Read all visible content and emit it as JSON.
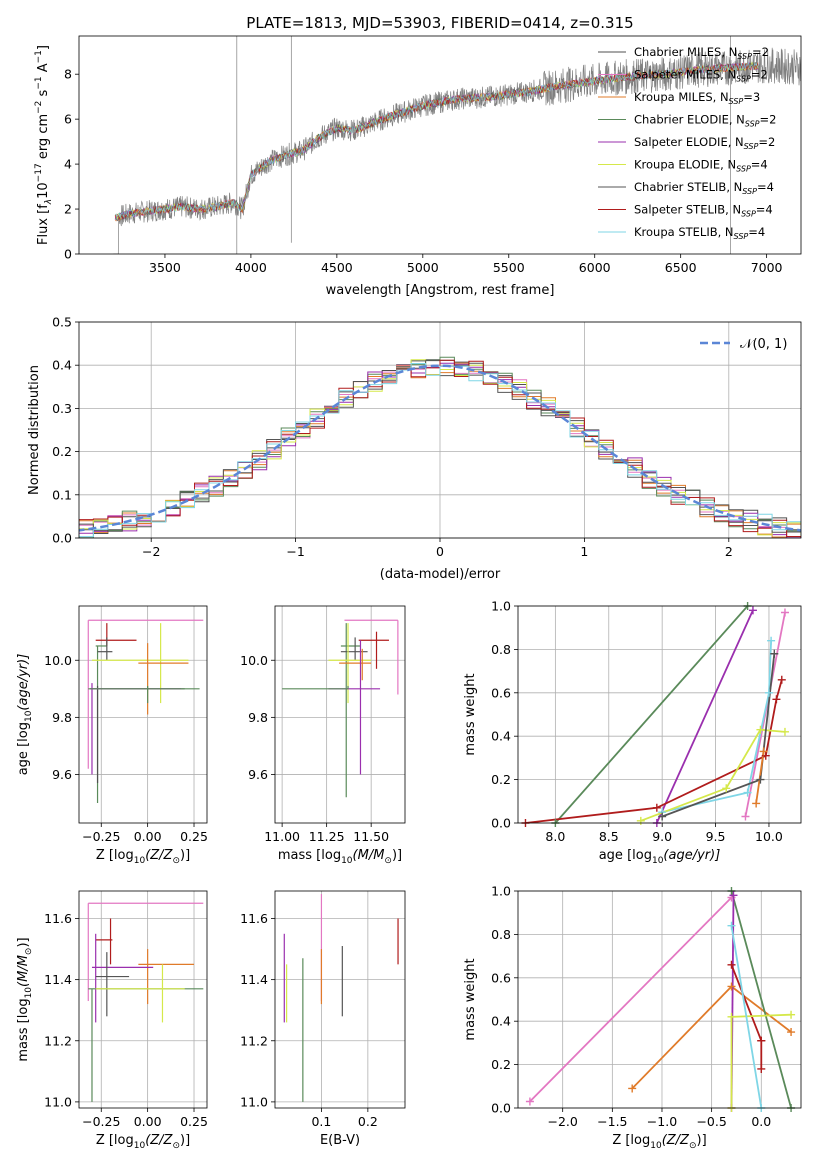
{
  "title": "PLATE=1813, MJD=53903, FIBERID=0414, z=0.315",
  "models": [
    {
      "label": "Chabrier MILES, N",
      "nssp": "=2",
      "color": "#4f4f4f"
    },
    {
      "label": "Salpeter MILES, N",
      "nssp": "=2",
      "color": "#e377c2"
    },
    {
      "label": "Kroupa MILES, N",
      "nssp": "=3",
      "color": "#e07b2a"
    },
    {
      "label": "Chabrier ELODIE, N",
      "nssp": "=2",
      "color": "#5a8a5a"
    },
    {
      "label": "Salpeter ELODIE, N",
      "nssp": "=2",
      "color": "#9a2fae"
    },
    {
      "label": "Kroupa ELODIE, N",
      "nssp": "=4",
      "color": "#d5e84a"
    },
    {
      "label": "Chabrier STELIB, N",
      "nssp": "=4",
      "color": "#555555"
    },
    {
      "label": "Salpeter STELIB, N",
      "nssp": "=4",
      "color": "#b01c1c"
    },
    {
      "label": "Kroupa STELIB, N",
      "nssp": "=4",
      "color": "#7fd6e6"
    }
  ],
  "extra_colors": {
    "blue": "#5b86d6",
    "green": "#2e7d32",
    "gray": "#808080"
  },
  "panels": {
    "spectrum": {
      "xlabel": "wavelength [Angstrom, rest frame]",
      "ylabel": "Flux [f",
      "ylabel_lambda": "λ",
      "ylabel_mid": "10",
      "ylabel_exp": "−17",
      "ylabel_units": " erg cm",
      "ylabel_cm_exp": "−2",
      "ylabel_s": " s",
      "ylabel_s_exp": "−1",
      "ylabel_end": " A",
      "ylabel_a_exp": "−1",
      "ylabel_close": "]",
      "subscript": "SSP",
      "xticks": [
        "3500",
        "4000",
        "4500",
        "5000",
        "5500",
        "6000",
        "6500",
        "7000"
      ],
      "yticks": [
        "0",
        "2",
        "4",
        "6",
        "8"
      ]
    },
    "residuals": {
      "xlabel": "(data-model)/error",
      "ylabel": "Normed distribution",
      "legend_label": "𝒩(0, 1)",
      "xticks": [
        "−2",
        "−1",
        "0",
        "1",
        "2"
      ],
      "yticks": [
        "0.0",
        "0.1",
        "0.2",
        "0.3",
        "0.4",
        "0.5"
      ]
    },
    "age_z": {
      "xlabel": "Z [log",
      "xlabel_sub": "10",
      "xlabel_rest": "(Z/Z",
      "xlabel_sun": "⊙",
      "xlabel_close": ")]",
      "ylabel": "age  [log",
      "ylabel_sub": "10",
      "ylabel_rest": "(age/yr)]",
      "xticks": [
        "−0.25",
        "0.00",
        "0.25"
      ],
      "yticks": [
        "9.6",
        "9.8",
        "10.0"
      ]
    },
    "age_mass": {
      "xlabel": "mass [log",
      "xlabel_sub": "10",
      "xlabel_rest": "(M/M",
      "xlabel_sun": "⊙",
      "xlabel_close": ")]",
      "xticks": [
        "11.00",
        "11.25",
        "11.50"
      ],
      "yticks": [
        "9.6",
        "9.8",
        "10.0"
      ]
    },
    "mw_age": {
      "xlabel": "age  [log",
      "xlabel_sub": "10",
      "xlabel_rest": "(age/yr)]",
      "ylabel": "mass weight",
      "xticks": [
        "8.0",
        "8.5",
        "9.0",
        "9.5",
        "10.0"
      ],
      "yticks": [
        "0.0",
        "0.2",
        "0.4",
        "0.6",
        "0.8",
        "1.0"
      ]
    },
    "mass_z": {
      "xlabel": "Z [log",
      "xlabel_sub": "10",
      "xlabel_rest": "(Z/Z",
      "xlabel_sun": "⊙",
      "xlabel_close": ")]",
      "ylabel": "mass [log",
      "ylabel_sub": "10",
      "ylabel_rest": "(M/M",
      "ylabel_sun": "⊙",
      "ylabel_close": ")]",
      "xticks": [
        "−0.25",
        "0.00",
        "0.25"
      ],
      "yticks": [
        "11.0",
        "11.2",
        "11.4",
        "11.6"
      ]
    },
    "mass_ebv": {
      "xlabel": "E(B-V)",
      "xticks": [
        "0.1",
        "0.2"
      ],
      "yticks": [
        "11.0",
        "11.2",
        "11.4",
        "11.6"
      ]
    },
    "mw_z": {
      "xlabel": "Z [log",
      "xlabel_sub": "10",
      "xlabel_rest": "(Z/Z",
      "xlabel_sun": "⊙",
      "xlabel_close": ")]",
      "ylabel": "mass weight",
      "xticks": [
        "−2.0",
        "−1.5",
        "−1.0",
        "−0.5",
        "0.0"
      ],
      "yticks": [
        "0.0",
        "0.2",
        "0.4",
        "0.6",
        "0.8",
        "1.0"
      ]
    }
  },
  "chart_data": [
    {
      "type": "line",
      "title": "PLATE=1813, MJD=53903, FIBERID=0414, z=0.315",
      "xlabel": "wavelength [Angstrom, rest frame]",
      "ylabel": "Flux [fλ 10^−17 erg cm^−2 s^−1 A^−1]",
      "xlim": [
        3000,
        7200
      ],
      "ylim": [
        0,
        9.7
      ],
      "grid": false,
      "legend": "top-right",
      "series_names": [
        "Chabrier MILES, NSSP=2",
        "Salpeter MILES, NSSP=2",
        "Kroupa MILES, NSSP=3",
        "Chabrier ELODIE, NSSP=2",
        "Salpeter ELODIE, NSSP=2",
        "Kroupa ELODIE, NSSP=4",
        "Chabrier STELIB, NSSP=4",
        "Salpeter STELIB, NSSP=4",
        "Kroupa STELIB, NSSP=4"
      ],
      "continuum_x": [
        3200,
        3300,
        3500,
        3600,
        3700,
        3800,
        3900,
        3950,
        4000,
        4100,
        4200,
        4300,
        4400,
        4500,
        4600,
        4800,
        5000,
        5200,
        5400,
        5600,
        5800,
        6000,
        6200,
        6400,
        6600,
        6800,
        7000,
        7200
      ],
      "continuum_y": [
        1.6,
        1.8,
        2.0,
        2.1,
        2.0,
        2.1,
        2.3,
        2.0,
        3.5,
        4.1,
        4.4,
        4.6,
        5.2,
        5.6,
        5.5,
        6.1,
        6.6,
        6.9,
        7.0,
        7.2,
        7.5,
        7.7,
        7.9,
        8.0,
        8.2,
        8.3,
        8.4,
        8.3
      ],
      "noise_amplitude": 0.5
    },
    {
      "type": "bar",
      "xlabel": "(data-model)/error",
      "ylabel": "Normed distribution",
      "xlim": [
        -2.5,
        2.5
      ],
      "ylim": [
        0,
        0.5
      ],
      "grid": true,
      "legend": "top-right",
      "bin_width": 0.1,
      "reference_curve": "N(0,1)",
      "histogram_scatter": 0.025
    },
    {
      "type": "scatter",
      "xlabel": "Z [log10(Z/Z⊙)]",
      "ylabel": "age [log10(age/yr)]",
      "xlim": [
        -0.37,
        0.32
      ],
      "ylim": [
        9.43,
        10.19
      ],
      "grid": true,
      "points": [
        {
          "c": 1,
          "x": -0.32,
          "y": 10.14,
          "xl": -0.32,
          "xh": 0.3,
          "yl": 9.62,
          "yh": 10.14
        },
        {
          "c": 9,
          "x": -0.28,
          "y": 10.08,
          "xl": -0.32,
          "xh": 0.3,
          "yl": 9.47,
          "yh": 10.08
        },
        {
          "c": 7,
          "x": -0.22,
          "y": 10.07,
          "xl": -0.28,
          "xh": -0.06,
          "yl": 10.05,
          "yh": 10.13
        },
        {
          "c": 3,
          "x": -0.27,
          "y": 10.05,
          "xl": -0.28,
          "xh": -0.22,
          "yl": 9.5,
          "yh": 10.05
        },
        {
          "c": 6,
          "x": -0.22,
          "y": 10.03,
          "xl": -0.27,
          "xh": -0.19,
          "yl": 10.0,
          "yh": 10.08
        },
        {
          "c": 5,
          "x": 0.07,
          "y": 10.0,
          "xl": -0.3,
          "xh": 0.22,
          "yl": 9.85,
          "yh": 10.13
        },
        {
          "c": 2,
          "x": 0.0,
          "y": 9.99,
          "xl": -0.05,
          "xh": 0.22,
          "yl": 9.81,
          "yh": 10.06
        },
        {
          "c": 0,
          "x": -0.27,
          "y": 9.9,
          "xl": -0.31,
          "xh": 0.2,
          "yl": 9.57,
          "yh": 9.91
        },
        {
          "c": 4,
          "x": -0.3,
          "y": 9.9,
          "xl": -0.31,
          "xh": 0.18,
          "yl": 9.6,
          "yh": 9.92
        },
        {
          "c": 3,
          "x": 0.0,
          "y": 9.9,
          "xl": -0.32,
          "xh": 0.28,
          "yl": 9.85,
          "yh": 9.91
        }
      ]
    },
    {
      "type": "scatter",
      "xlabel": "mass [log10(M/M⊙)]",
      "xlim": [
        10.96,
        11.69
      ],
      "ylim": [
        9.43,
        10.19
      ],
      "grid": true,
      "points": [
        {
          "c": 1,
          "x": 11.65,
          "y": 10.14,
          "xl": 11.35,
          "xh": 11.65,
          "yl": 9.88,
          "yh": 10.14
        },
        {
          "c": 9,
          "x": 11.48,
          "y": 10.08,
          "xl": 11.08,
          "xh": 11.5,
          "yl": 9.47,
          "yh": 10.08
        },
        {
          "c": 7,
          "x": 11.53,
          "y": 10.07,
          "xl": 11.43,
          "xh": 11.6,
          "yl": 9.97,
          "yh": 10.1
        },
        {
          "c": 3,
          "x": 11.36,
          "y": 10.05,
          "xl": 11.33,
          "xh": 11.44,
          "yl": 9.52,
          "yh": 10.13
        },
        {
          "c": 6,
          "x": 11.41,
          "y": 10.03,
          "xl": 11.33,
          "xh": 11.48,
          "yl": 10.0,
          "yh": 10.08
        },
        {
          "c": 5,
          "x": 11.37,
          "y": 10.0,
          "xl": 11.26,
          "xh": 11.5,
          "yl": 9.85,
          "yh": 10.13
        },
        {
          "c": 2,
          "x": 11.45,
          "y": 9.99,
          "xl": 11.32,
          "xh": 11.5,
          "yl": 9.93,
          "yh": 10.04
        },
        {
          "c": 4,
          "x": 11.44,
          "y": 9.9,
          "xl": 11.26,
          "xh": 11.55,
          "yl": 9.6,
          "yh": 10.07
        },
        {
          "c": 3,
          "x": 11.37,
          "y": 9.9,
          "xl": 11.0,
          "xh": 11.37,
          "yl": 9.9,
          "yh": 9.91
        }
      ]
    },
    {
      "type": "line",
      "xlabel": "age [log10(age/yr)]",
      "ylabel": "mass weight",
      "xlim": [
        7.65,
        10.3
      ],
      "ylim": [
        0,
        1
      ],
      "grid": true,
      "series": [
        {
          "c": 3,
          "x": [
            8.0,
            9.8
          ],
          "y": [
            0.0,
            1.0
          ]
        },
        {
          "c": 4,
          "x": [
            8.95,
            9.85
          ],
          "y": [
            0.0,
            0.98
          ]
        },
        {
          "c": 9,
          "x": [
            8.7,
            8.75,
            10.02
          ],
          "y": [
            0.0,
            0.02,
            0.99
          ]
        },
        {
          "c": 9,
          "x": [
            7.72,
            8.7,
            10.0
          ],
          "y": [
            0.0,
            0.03,
            0.85
          ]
        },
        {
          "c": 1,
          "x": [
            9.78,
            10.15
          ],
          "y": [
            0.03,
            0.97
          ]
        },
        {
          "c": 7,
          "x": [
            7.72,
            8.95,
            9.97,
            10.07,
            10.12
          ],
          "y": [
            0.0,
            0.07,
            0.31,
            0.57,
            0.66
          ]
        },
        {
          "c": 8,
          "x": [
            9.0,
            9.8,
            10.0,
            10.02
          ],
          "y": [
            0.05,
            0.14,
            0.6,
            0.84
          ]
        },
        {
          "c": 5,
          "x": [
            8.8,
            9.6,
            9.92,
            10.15
          ],
          "y": [
            0.01,
            0.16,
            0.43,
            0.42
          ]
        },
        {
          "c": 6,
          "x": [
            9.0,
            9.92,
            10.05
          ],
          "y": [
            0.03,
            0.2,
            0.78
          ]
        },
        {
          "c": 2,
          "x": [
            9.88,
            9.95
          ],
          "y": [
            0.09,
            0.33
          ]
        }
      ]
    },
    {
      "type": "scatter",
      "xlabel": "Z [log10(Z/Z⊙)]",
      "ylabel": "mass [log10(M/M⊙)]",
      "xlim": [
        -0.37,
        0.32
      ],
      "ylim": [
        10.98,
        11.69
      ],
      "grid": true,
      "points": [
        {
          "c": 1,
          "x": -0.32,
          "y": 11.65,
          "xl": -0.32,
          "xh": 0.3,
          "yl": 11.33,
          "yh": 11.65
        },
        {
          "c": 7,
          "x": -0.2,
          "y": 11.53,
          "xl": -0.28,
          "xh": -0.19,
          "yl": 11.45,
          "yh": 11.6
        },
        {
          "c": 9,
          "x": -0.28,
          "y": 11.49,
          "xl": -0.32,
          "xh": 0.3,
          "yl": 11.08,
          "yh": 11.49
        },
        {
          "c": 2,
          "x": 0.0,
          "y": 11.45,
          "xl": -0.05,
          "xh": 0.25,
          "yl": 11.32,
          "yh": 11.5
        },
        {
          "c": 4,
          "x": -0.28,
          "y": 11.44,
          "xl": -0.3,
          "xh": 0.03,
          "yl": 11.26,
          "yh": 11.55
        },
        {
          "c": 6,
          "x": -0.22,
          "y": 11.41,
          "xl": -0.28,
          "xh": -0.1,
          "yl": 11.28,
          "yh": 11.49
        },
        {
          "c": 3,
          "x": -0.3,
          "y": 11.37,
          "xl": -0.32,
          "xh": 0.3,
          "yl": 11.0,
          "yh": 11.37
        },
        {
          "c": 5,
          "x": 0.08,
          "y": 11.37,
          "xl": -0.28,
          "xh": 0.2,
          "yl": 11.26,
          "yh": 11.45
        }
      ]
    },
    {
      "type": "scatter",
      "xlabel": "E(B-V)",
      "xlim": [
        0.0,
        0.28
      ],
      "ylim": [
        10.98,
        11.69
      ],
      "grid": true,
      "points": [
        {
          "c": 1,
          "x": 0.1,
          "y": 11.65,
          "yl": 11.33,
          "yh": 11.68
        },
        {
          "c": 7,
          "x": 0.265,
          "y": 11.53,
          "yl": 11.45,
          "yh": 11.6
        },
        {
          "c": 9,
          "x": 0.095,
          "y": 11.49,
          "yl": 11.08,
          "yh": 11.52
        },
        {
          "c": 2,
          "x": 0.1,
          "y": 11.45,
          "yl": 11.32,
          "yh": 11.5
        },
        {
          "c": 4,
          "x": 0.02,
          "y": 11.44,
          "yl": 11.26,
          "yh": 11.55
        },
        {
          "c": 6,
          "x": 0.145,
          "y": 11.41,
          "yl": 11.28,
          "yh": 11.51
        },
        {
          "c": 3,
          "x": 0.06,
          "y": 11.37,
          "yl": 11.0,
          "yh": 11.47
        },
        {
          "c": 5,
          "x": 0.025,
          "y": 11.37,
          "yl": 11.26,
          "yh": 11.45
        }
      ]
    },
    {
      "type": "line",
      "xlabel": "Z [log10(Z/Z⊙)]",
      "ylabel": "mass weight",
      "xlim": [
        -2.45,
        0.4
      ],
      "ylim": [
        0,
        1
      ],
      "grid": true,
      "series": [
        {
          "c": 1,
          "x": [
            -2.33,
            -0.3
          ],
          "y": [
            0.03,
            0.97
          ]
        },
        {
          "c": 2,
          "x": [
            -1.3,
            -0.3,
            0.3
          ],
          "y": [
            0.09,
            0.56,
            0.35
          ]
        },
        {
          "c": 3,
          "x": [
            -0.3,
            0.3
          ],
          "y": [
            1.0,
            0.0
          ]
        },
        {
          "c": 4,
          "x": [
            -0.3,
            -0.28
          ],
          "y": [
            0.0,
            0.98
          ]
        },
        {
          "c": 9,
          "x": [
            -0.3,
            0.0
          ],
          "y": [
            1.0,
            0.02
          ]
        },
        {
          "c": 7,
          "x": [
            -0.3,
            0.0
          ],
          "y": [
            0.66,
            0.31
          ]
        },
        {
          "c": 5,
          "x": [
            -0.3,
            -0.3,
            0.3
          ],
          "y": [
            0.0,
            0.42,
            0.43
          ]
        },
        {
          "c": 8,
          "x": [
            -0.3,
            0.0
          ],
          "y": [
            0.84,
            0.0
          ]
        },
        {
          "c": 7,
          "x": [
            0.0,
            0.0
          ],
          "y": [
            0.18,
            0.31
          ]
        }
      ]
    }
  ]
}
